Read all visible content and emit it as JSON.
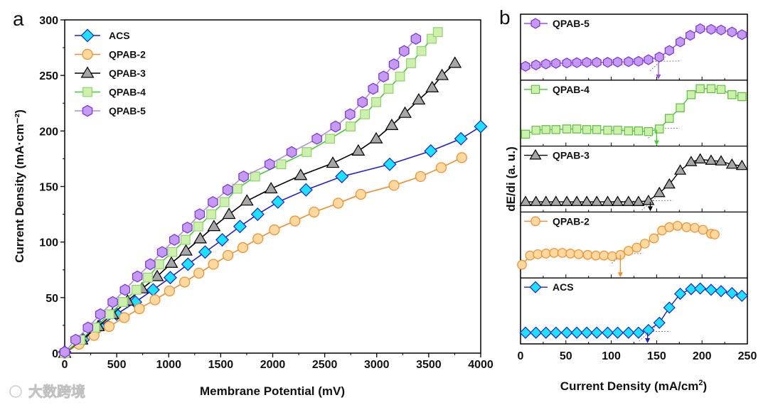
{
  "watermark": "大数跨境",
  "chart_data": [
    {
      "panel_label": "a",
      "type": "line",
      "xlabel": "Membrane Potential (mV)",
      "ylabel": "Current Density (mA·cm⁻²)",
      "xlim": [
        0,
        4000
      ],
      "ylim": [
        0,
        300
      ],
      "xticks": [
        "0",
        "500",
        "1000",
        "1500",
        "2000",
        "2500",
        "3000",
        "3500",
        "4000"
      ],
      "yticks": [
        "0",
        "50",
        "100",
        "150",
        "200",
        "250",
        "300"
      ],
      "legend_position": "top-left",
      "series": [
        {
          "name": "ACS",
          "marker": "diamond",
          "line": "#1f1fd6",
          "fill": "#19e3ff",
          "edge": "#1f1fd6",
          "x": [
            0,
            177,
            335,
            500,
            680,
            850,
            1015,
            1185,
            1350,
            1515,
            1685,
            1855,
            2050,
            2320,
            2665,
            3125,
            3520,
            3810,
            4000
          ],
          "y": [
            1,
            12,
            24,
            35,
            46,
            57,
            68,
            80,
            91,
            102,
            114,
            125,
            136,
            147,
            159,
            170,
            182,
            193,
            204
          ]
        },
        {
          "name": "QPAB-2",
          "marker": "circle",
          "line": "#f28c28",
          "fill": "#fdd9a0",
          "edge": "#f28c28",
          "x": [
            0,
            137,
            282,
            427,
            573,
            718,
            868,
            1008,
            1153,
            1290,
            1430,
            1570,
            1713,
            1858,
            2016,
            2214,
            2398,
            2630,
            2847,
            3166,
            3422,
            3620,
            3818
          ],
          "y": [
            0,
            8,
            16,
            24,
            32,
            40,
            48,
            56,
            64,
            72,
            80,
            88,
            95,
            103,
            111,
            119,
            127,
            135,
            143,
            151,
            159,
            167,
            176
          ]
        },
        {
          "name": "QPAB-3",
          "marker": "triangle",
          "line": "#000000",
          "fill": "#a6a6a6",
          "edge": "#000000",
          "x": [
            0,
            164,
            322,
            459,
            604,
            744,
            889,
            1026,
            1166,
            1303,
            1435,
            1580,
            1752,
            1984,
            2269,
            2578,
            2823,
            2995,
            3145,
            3272,
            3404,
            3533,
            3628,
            3752
          ],
          "y": [
            0,
            12,
            24,
            35,
            47,
            58,
            69,
            81,
            92,
            103,
            114,
            125,
            137,
            148,
            160,
            171,
            182,
            193,
            205,
            216,
            228,
            239,
            250,
            261
          ]
        },
        {
          "name": "QPAB-4",
          "marker": "square",
          "line": "#3ccf2a",
          "fill": "#cdf0ac",
          "edge": "#8fd46a",
          "x": [
            0,
            150,
            290,
            430,
            560,
            690,
            800,
            908,
            1034,
            1161,
            1285,
            1409,
            1536,
            1660,
            1831,
            2082,
            2327,
            2551,
            2749,
            2887,
            2995,
            3114,
            3224,
            3330,
            3430,
            3528,
            3588
          ],
          "y": [
            0,
            12,
            23,
            35,
            46,
            57,
            68,
            80,
            91,
            102,
            114,
            125,
            136,
            148,
            159,
            170,
            181,
            193,
            204,
            215,
            226,
            238,
            249,
            261,
            272,
            283,
            289
          ]
        },
        {
          "name": "QPAB-5",
          "marker": "hexagon",
          "line": "#b58be0",
          "fill": "#c59af2",
          "edge": "#7a2ee0",
          "x": [
            0,
            105,
            224,
            343,
            462,
            580,
            699,
            823,
            937,
            1055,
            1179,
            1298,
            1425,
            1567,
            1720,
            1971,
            2182,
            2425,
            2604,
            2744,
            2863,
            2966,
            3066,
            3166,
            3264,
            3377
          ],
          "y": [
            1,
            12,
            23,
            35,
            46,
            57,
            69,
            80,
            91,
            102,
            113,
            125,
            136,
            147,
            159,
            170,
            181,
            193,
            204,
            215,
            226,
            238,
            249,
            260,
            272,
            283
          ]
        }
      ]
    },
    {
      "panel_label": "b",
      "type": "line",
      "xlabel": "Current Density (mA/cm²)",
      "xlabel_main": "Current Density (mA/cm",
      "xlabel_sup": "2",
      "xlabel_end": ")",
      "ylabel": "dE/di (a. u.)",
      "xlim": [
        0,
        250
      ],
      "ylim_normalized": [
        0,
        1
      ],
      "xticks": [
        "0",
        "50",
        "100",
        "150",
        "200",
        "250"
      ],
      "panels": [
        {
          "name": "QPAB-5",
          "marker": "hexagon",
          "line": "#9b4de8",
          "fill": "#c59af2",
          "edge": "#7a2ee0",
          "onset": 152,
          "x": [
            5.5,
            17,
            28,
            39,
            51,
            62,
            73,
            84,
            96,
            107,
            119,
            130,
            141,
            153,
            164,
            176,
            187,
            198,
            210,
            221,
            233,
            244
          ],
          "y": [
            0.21,
            0.23,
            0.245,
            0.255,
            0.26,
            0.265,
            0.27,
            0.27,
            0.27,
            0.275,
            0.28,
            0.285,
            0.31,
            0.35,
            0.45,
            0.58,
            0.68,
            0.78,
            0.77,
            0.76,
            0.73,
            0.69
          ]
        },
        {
          "name": "QPAB-4",
          "marker": "square",
          "line": "#3ccf2a",
          "fill": "#cdf0ac",
          "edge": "#5cc23c",
          "onset": 150,
          "x": [
            5.5,
            17,
            28,
            39,
            51,
            62,
            73,
            84,
            96,
            107,
            119,
            130,
            141,
            153,
            164,
            176,
            188,
            198,
            210,
            221,
            233,
            244
          ],
          "y": [
            0.18,
            0.24,
            0.25,
            0.25,
            0.26,
            0.26,
            0.25,
            0.25,
            0.24,
            0.24,
            0.23,
            0.23,
            0.22,
            0.26,
            0.42,
            0.58,
            0.78,
            0.87,
            0.87,
            0.86,
            0.78,
            0.75
          ]
        },
        {
          "name": "QPAB-3",
          "marker": "triangle",
          "line": "#000000",
          "fill": "#a6a6a6",
          "edge": "#000000",
          "onset": 143,
          "x": [
            5.5,
            17,
            28,
            39,
            51,
            62,
            73,
            84,
            96,
            107,
            119,
            130,
            141,
            153,
            164,
            176,
            188,
            198,
            210,
            221,
            233,
            244
          ],
          "y": [
            0.155,
            0.155,
            0.155,
            0.155,
            0.155,
            0.155,
            0.155,
            0.155,
            0.155,
            0.155,
            0.155,
            0.155,
            0.17,
            0.29,
            0.42,
            0.63,
            0.76,
            0.8,
            0.78,
            0.77,
            0.72,
            0.7
          ]
        },
        {
          "name": "QPAB-2",
          "marker": "circle",
          "line": "#f28c28",
          "fill": "#fdd9a0",
          "edge": "#f28c28",
          "onset": 110,
          "x": [
            1.6,
            10.5,
            19,
            28,
            37,
            46,
            55,
            64,
            74,
            83,
            92,
            101,
            110,
            119,
            128,
            137,
            147,
            156,
            164,
            173,
            183,
            192,
            201,
            210,
            214
          ],
          "y": [
            0.2,
            0.34,
            0.36,
            0.37,
            0.38,
            0.38,
            0.37,
            0.36,
            0.35,
            0.34,
            0.34,
            0.33,
            0.35,
            0.41,
            0.46,
            0.52,
            0.6,
            0.72,
            0.77,
            0.79,
            0.77,
            0.76,
            0.73,
            0.67,
            0.66
          ]
        },
        {
          "name": "ACS",
          "marker": "diamond",
          "line": "#1f1fd6",
          "fill": "#19e3ff",
          "edge": "#1f1fd6",
          "onset": 140,
          "x": [
            5.5,
            17,
            28,
            39,
            51,
            62,
            73,
            84,
            96,
            107,
            119,
            130,
            141,
            153,
            164,
            176,
            188,
            198,
            210,
            221,
            233,
            244
          ],
          "y": [
            0.17,
            0.17,
            0.17,
            0.17,
            0.17,
            0.17,
            0.17,
            0.17,
            0.17,
            0.17,
            0.17,
            0.17,
            0.21,
            0.32,
            0.55,
            0.76,
            0.83,
            0.84,
            0.82,
            0.8,
            0.77,
            0.73
          ]
        }
      ]
    }
  ]
}
